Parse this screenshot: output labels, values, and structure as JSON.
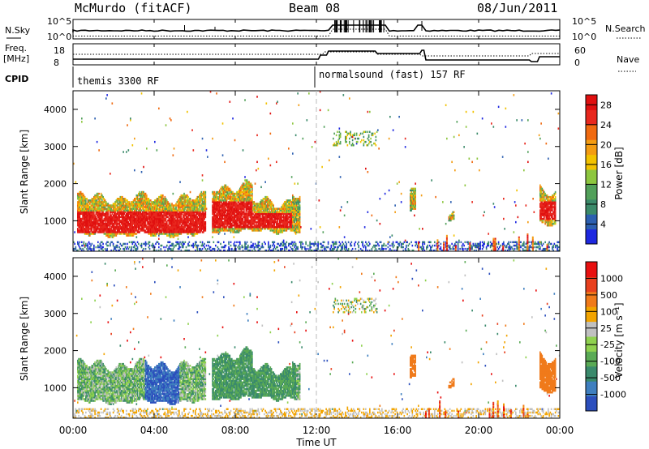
{
  "header": {
    "station": "McMurdo (fitACF)",
    "beam": "Beam 08",
    "date": "08/Jun/2011"
  },
  "top_panel": {
    "left_label_top": "N.Sky",
    "left_label_bottom": "",
    "left_tick_high": "10^5",
    "left_tick_low": "10^0",
    "right_tick_high": "10^5",
    "right_tick_low": "10^0",
    "right_label": "N.Search"
  },
  "freq_panel": {
    "left_label_line1": "Freq.",
    "left_label_line2": "[MHz]",
    "left_tick_high": "18",
    "left_tick_low": "8",
    "right_tick_high": "60",
    "right_tick_low": "0",
    "right_label": "Nave"
  },
  "cpid": {
    "label": "CPID",
    "program_1": "themis 3300 RF",
    "program_2": "normalsound (fast) 157 RF"
  },
  "chart_data": [
    {
      "type": "heatmap",
      "title": "",
      "ylabel": "Slant Range [km]",
      "xlabel": "",
      "ylim": [
        180,
        4500
      ],
      "xlim": [
        0,
        24
      ],
      "y_ticks": [
        "1000",
        "2000",
        "3000",
        "4000"
      ],
      "colorbar": {
        "label": "Power [dB]",
        "ticks": [
          "4",
          "8",
          "12",
          "16",
          "20",
          "24",
          "28"
        ],
        "colors": [
          "#1e28e0",
          "#2c5fb0",
          "#3b8a6a",
          "#52a05a",
          "#8dc63f",
          "#f2c200",
          "#f39c12",
          "#f06a10",
          "#e8281e",
          "#e01010"
        ]
      }
    },
    {
      "type": "heatmap",
      "title": "",
      "ylabel": "Slant Range [km]",
      "xlabel": "Time UT",
      "ylim": [
        180,
        4500
      ],
      "xlim": [
        0,
        24
      ],
      "y_ticks": [
        "1000",
        "2000",
        "3000",
        "4000"
      ],
      "x_ticks": [
        "00:00",
        "04:00",
        "08:00",
        "12:00",
        "16:00",
        "20:00",
        "00:00"
      ],
      "colorbar": {
        "label": "Velocity [m s⁻¹]",
        "ticks": [
          "1000",
          "500",
          "100",
          "25",
          "-25",
          "-100",
          "-500",
          "-1000"
        ],
        "colors": [
          "#2c4fbd",
          "#3f7fbf",
          "#3a8a6c",
          "#5aaa55",
          "#8fd14f",
          "#c0c0c0",
          "#f2a400",
          "#f07a1a",
          "#e8401e",
          "#e81010"
        ]
      }
    }
  ]
}
